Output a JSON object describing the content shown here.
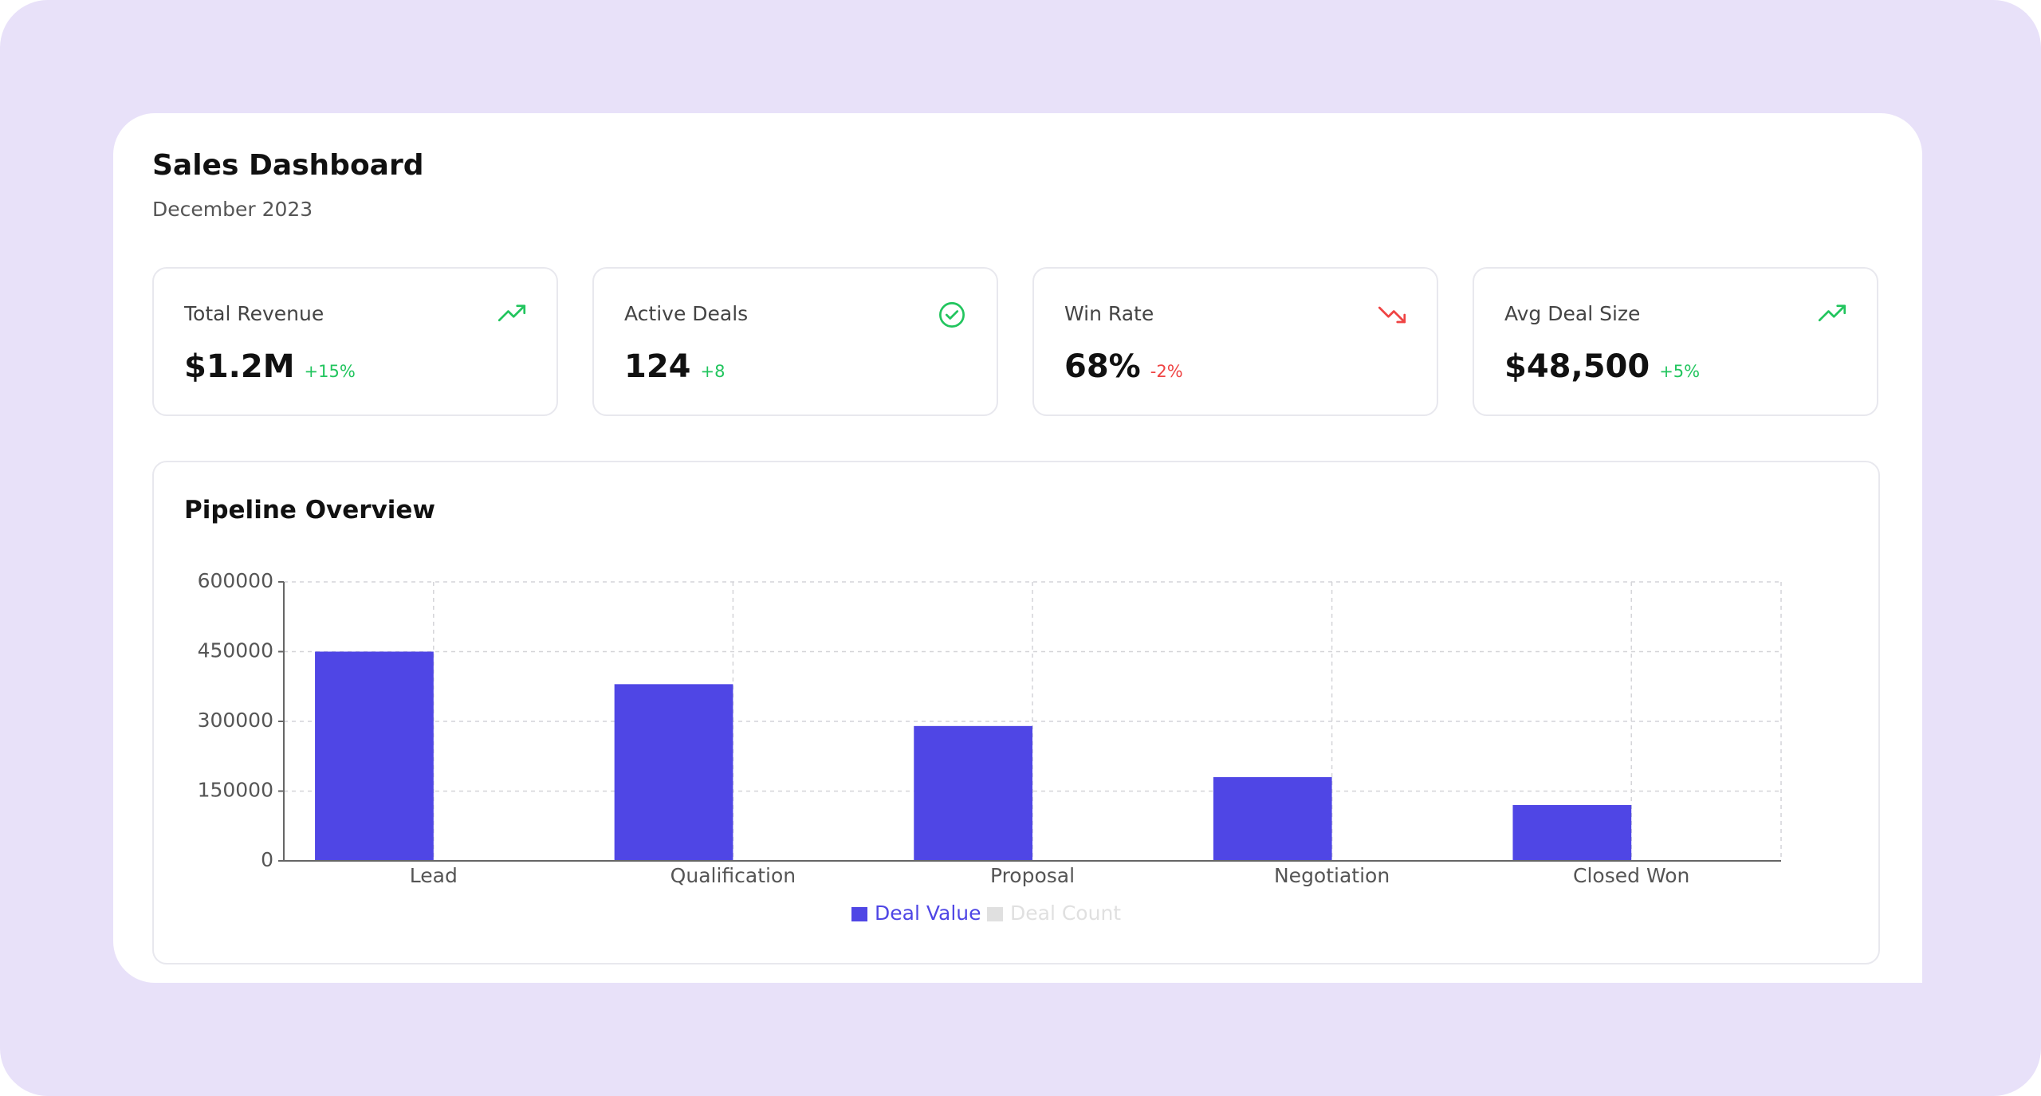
{
  "header": {
    "title": "Sales Dashboard",
    "subtitle": "December 2023"
  },
  "kpis": [
    {
      "label": "Total Revenue",
      "value": "$1.2M",
      "change": "+15%",
      "trend": "up",
      "icon": "trend-up"
    },
    {
      "label": "Active Deals",
      "value": "124",
      "change": "+8",
      "trend": "up",
      "icon": "check"
    },
    {
      "label": "Win Rate",
      "value": "68%",
      "change": "-2%",
      "trend": "down",
      "icon": "trend-down"
    },
    {
      "label": "Avg Deal Size",
      "value": "$48,500",
      "change": "+5%",
      "trend": "up",
      "icon": "trend-up"
    }
  ],
  "chart_data": {
    "type": "bar",
    "title": "Pipeline Overview",
    "categories": [
      "Lead",
      "Qualification",
      "Proposal",
      "Negotiation",
      "Closed Won"
    ],
    "series": [
      {
        "name": "Deal Value",
        "color": "#4f46e5",
        "values": [
          450000,
          380000,
          290000,
          180000,
          120000
        ]
      },
      {
        "name": "Deal Count",
        "color": "#e0e0e0",
        "hidden": true,
        "values": [
          null,
          null,
          null,
          null,
          null
        ]
      }
    ],
    "ylim": [
      0,
      600000
    ],
    "yticks": [
      0,
      150000,
      300000,
      450000,
      600000
    ],
    "grid": true,
    "legend": "bottom"
  }
}
